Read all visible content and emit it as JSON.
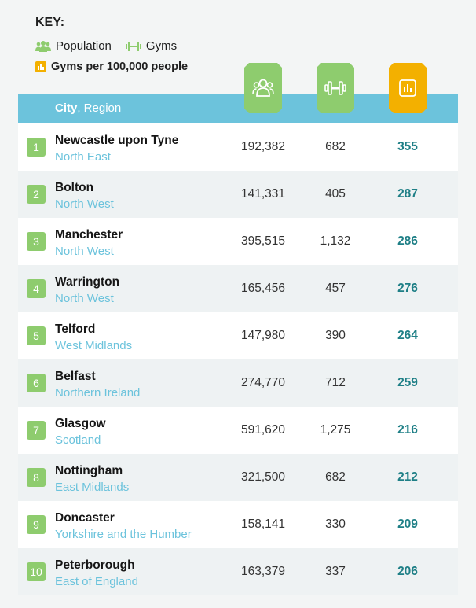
{
  "key": {
    "title": "KEY:",
    "population_label": "Population",
    "gyms_label": "Gyms",
    "rate_label": "Gyms per 100,000 people"
  },
  "header": {
    "city_label": "City",
    "region_label": ", Region"
  },
  "icons": {
    "population": "people-icon",
    "gyms": "dumbbell-icon",
    "rate": "bar-chart-icon"
  },
  "colors": {
    "green": "#8ecc6e",
    "blue": "#6cc3dc",
    "orange": "#f3b000",
    "teal_value": "#1e7f86"
  },
  "chart_data": {
    "type": "table",
    "columns": [
      "City",
      "Region",
      "Population",
      "Gyms",
      "Gyms per 100,000 people"
    ],
    "rows": [
      {
        "rank": "1",
        "city": "Newcastle upon Tyne",
        "region": "North East",
        "population": "192,382",
        "gyms": "682",
        "rate": "355"
      },
      {
        "rank": "2",
        "city": "Bolton",
        "region": "North West",
        "population": "141,331",
        "gyms": "405",
        "rate": "287"
      },
      {
        "rank": "3",
        "city": "Manchester",
        "region": "North West",
        "population": "395,515",
        "gyms": "1,132",
        "rate": "286"
      },
      {
        "rank": "4",
        "city": "Warrington",
        "region": "North West",
        "population": "165,456",
        "gyms": "457",
        "rate": "276"
      },
      {
        "rank": "5",
        "city": "Telford",
        "region": "West Midlands",
        "population": "147,980",
        "gyms": "390",
        "rate": "264"
      },
      {
        "rank": "6",
        "city": "Belfast",
        "region": "Northern Ireland",
        "population": "274,770",
        "gyms": "712",
        "rate": "259"
      },
      {
        "rank": "7",
        "city": "Glasgow",
        "region": "Scotland",
        "population": "591,620",
        "gyms": "1,275",
        "rate": "216"
      },
      {
        "rank": "8",
        "city": "Nottingham",
        "region": "East Midlands",
        "population": "321,500",
        "gyms": "682",
        "rate": "212"
      },
      {
        "rank": "9",
        "city": "Doncaster",
        "region": "Yorkshire and the Humber",
        "population": "158,141",
        "gyms": "330",
        "rate": "209"
      },
      {
        "rank": "10",
        "city": "Peterborough",
        "region": "East of England",
        "population": "163,379",
        "gyms": "337",
        "rate": "206"
      }
    ]
  }
}
